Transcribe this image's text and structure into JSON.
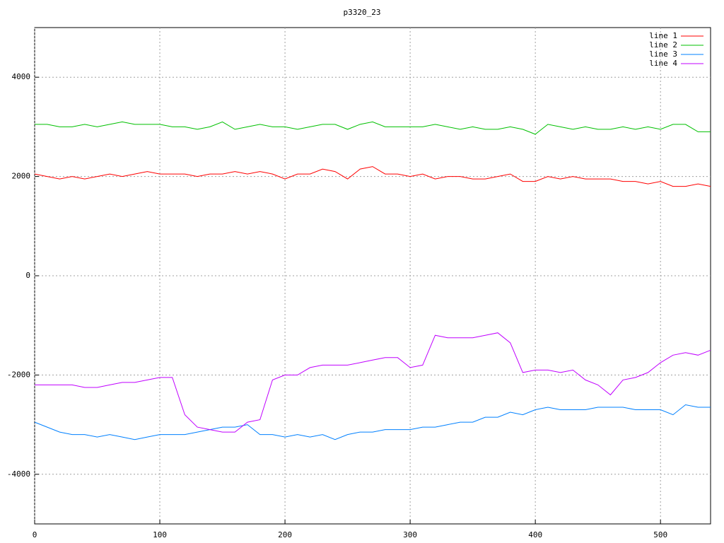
{
  "chart_data": {
    "type": "line",
    "title": "p3320_23",
    "x": [
      0,
      10,
      20,
      30,
      40,
      50,
      60,
      70,
      80,
      90,
      100,
      110,
      120,
      130,
      140,
      150,
      160,
      170,
      180,
      190,
      200,
      210,
      220,
      230,
      240,
      250,
      260,
      270,
      280,
      290,
      300,
      310,
      320,
      330,
      340,
      350,
      360,
      370,
      380,
      390,
      400,
      410,
      420,
      430,
      440,
      450,
      460,
      470,
      480,
      490,
      500,
      510,
      520,
      530,
      540
    ],
    "series": [
      {
        "name": "line 1",
        "color": "#ff0000",
        "values": [
          2050,
          2000,
          1950,
          2000,
          1950,
          2000,
          2050,
          2000,
          2050,
          2100,
          2050,
          2050,
          2050,
          2000,
          2050,
          2050,
          2100,
          2050,
          2100,
          2050,
          1950,
          2050,
          2050,
          2150,
          2100,
          1950,
          2150,
          2200,
          2050,
          2050,
          2000,
          2050,
          1950,
          2000,
          2000,
          1950,
          1950,
          2000,
          2050,
          1900,
          1900,
          2000,
          1950,
          2000,
          1950,
          1950,
          1950,
          1900,
          1900,
          1850,
          1900,
          1800,
          1800,
          1850,
          1800
        ]
      },
      {
        "name": "line 2",
        "color": "#00c000",
        "values": [
          3050,
          3050,
          3000,
          3000,
          3050,
          3000,
          3050,
          3100,
          3050,
          3050,
          3050,
          3000,
          3000,
          2950,
          3000,
          3100,
          2950,
          3000,
          3050,
          3000,
          3000,
          2950,
          3000,
          3050,
          3050,
          2950,
          3050,
          3100,
          3000,
          3000,
          3000,
          3000,
          3050,
          3000,
          2950,
          3000,
          2950,
          2950,
          3000,
          2950,
          2850,
          3050,
          3000,
          2950,
          3000,
          2950,
          2950,
          3000,
          2950,
          3000,
          2950,
          3050,
          3050,
          2900,
          2900
        ]
      },
      {
        "name": "line 3",
        "color": "#0080ff",
        "values": [
          -2950,
          -3050,
          -3150,
          -3200,
          -3200,
          -3250,
          -3200,
          -3250,
          -3300,
          -3250,
          -3200,
          -3200,
          -3200,
          -3150,
          -3100,
          -3050,
          -3050,
          -3000,
          -3200,
          -3200,
          -3250,
          -3200,
          -3250,
          -3200,
          -3300,
          -3200,
          -3150,
          -3150,
          -3100,
          -3100,
          -3100,
          -3050,
          -3050,
          -3000,
          -2950,
          -2950,
          -2850,
          -2850,
          -2750,
          -2800,
          -2700,
          -2650,
          -2700,
          -2700,
          -2700,
          -2650,
          -2650,
          -2650,
          -2700,
          -2700,
          -2700,
          -2800,
          -2600,
          -2650,
          -2650
        ]
      },
      {
        "name": "line 4",
        "color": "#c000ff",
        "values": [
          -2200,
          -2200,
          -2200,
          -2200,
          -2250,
          -2250,
          -2200,
          -2150,
          -2150,
          -2100,
          -2050,
          -2050,
          -2800,
          -3050,
          -3100,
          -3150,
          -3150,
          -2950,
          -2900,
          -2100,
          -2000,
          -2000,
          -1850,
          -1800,
          -1800,
          -1800,
          -1750,
          -1700,
          -1650,
          -1650,
          -1850,
          -1800,
          -1200,
          -1250,
          -1250,
          -1250,
          -1200,
          -1150,
          -1350,
          -1950,
          -1900,
          -1900,
          -1950,
          -1900,
          -2100,
          -2200,
          -2400,
          -2100,
          -2050,
          -1950,
          -1750,
          -1600,
          -1550,
          -1600,
          -1500
        ]
      }
    ],
    "xlim": [
      0,
      540
    ],
    "xticks": [
      0,
      100,
      200,
      300,
      400,
      500
    ],
    "ylim": [
      -5000,
      5000
    ],
    "yticks": [
      -4000,
      -2000,
      0,
      2000,
      4000
    ],
    "grid": true,
    "legend": "top-right"
  }
}
